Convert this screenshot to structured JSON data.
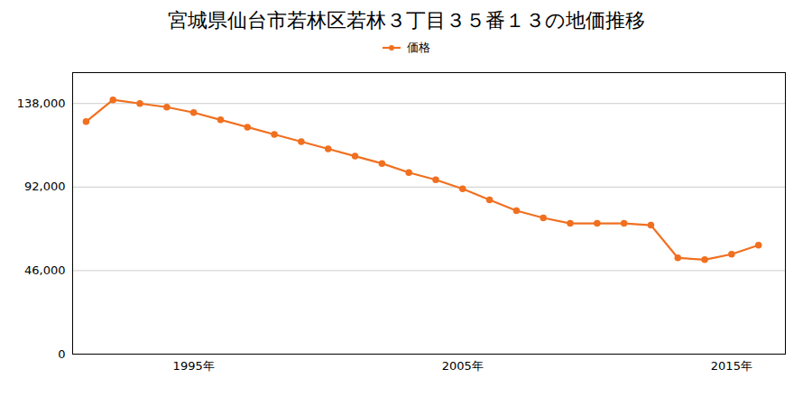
{
  "chart_data": {
    "type": "line",
    "title": "宮城県仙台市若林区若林３丁目３５番１３の地価推移",
    "x": [
      1991,
      1992,
      1993,
      1994,
      1995,
      1996,
      1997,
      1998,
      1999,
      2000,
      2001,
      2002,
      2003,
      2004,
      2005,
      2006,
      2007,
      2008,
      2009,
      2010,
      2011,
      2012,
      2013,
      2014,
      2015,
      2016
    ],
    "series": [
      {
        "name": "価格",
        "color": "#f07020",
        "marker": "circle",
        "values": [
          128000,
          140000,
          138000,
          136000,
          133000,
          129000,
          125000,
          121000,
          117000,
          113000,
          109000,
          105000,
          100000,
          96000,
          91000,
          85000,
          79000,
          75000,
          72000,
          72000,
          72000,
          71000,
          53000,
          52000,
          55000,
          60000
        ]
      }
    ],
    "xlim": [
      1990.5,
      2017
    ],
    "xticks": [
      {
        "value": 1995,
        "label": "1995年"
      },
      {
        "value": 2005,
        "label": "2005年"
      },
      {
        "value": 2015,
        "label": "2015年"
      }
    ],
    "ylim": [
      0,
      155000
    ],
    "yticks": [
      0,
      {
        "value": 46000,
        "label": "46,000"
      },
      {
        "value": 92000,
        "label": "92,000"
      },
      {
        "value": 138000,
        "label": "138,000"
      }
    ],
    "grid": "y",
    "legend": "top"
  }
}
